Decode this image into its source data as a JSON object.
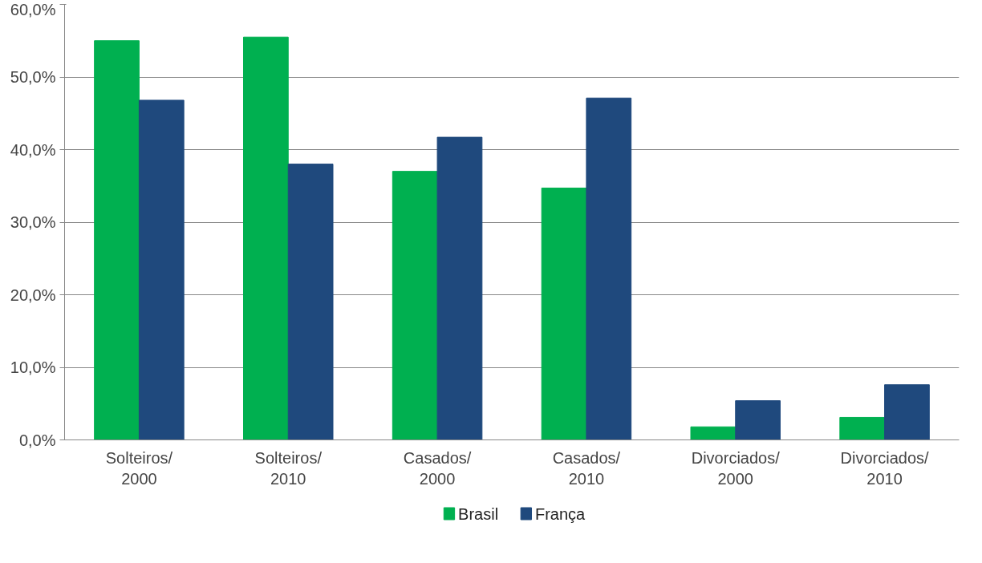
{
  "chart_data": {
    "type": "bar",
    "categories": [
      "Solteiros/\n2000",
      "Solteiros/\n2010",
      "Casados/\n2000",
      "Casados/\n2010",
      "Divorciados/\n2000",
      "Divorciados/\n2010"
    ],
    "series": [
      {
        "name": "Brasil",
        "color": "#00b050",
        "values": [
          55.0,
          55.5,
          37.0,
          34.7,
          1.8,
          3.1
        ]
      },
      {
        "name": "França",
        "color": "#1f497d",
        "values": [
          46.8,
          38.0,
          41.7,
          47.1,
          5.4,
          7.6
        ]
      }
    ],
    "ylim": [
      0,
      60
    ],
    "yticks": [
      {
        "value": 0,
        "label": "0,0%"
      },
      {
        "value": 10,
        "label": "10,0%"
      },
      {
        "value": 20,
        "label": "20,0%"
      },
      {
        "value": 30,
        "label": "30,0%"
      },
      {
        "value": 40,
        "label": "40,0%"
      },
      {
        "value": 50,
        "label": "50,0%"
      },
      {
        "value": 60,
        "label": "60,0%"
      }
    ],
    "grid": "y",
    "legend": "bottom"
  }
}
